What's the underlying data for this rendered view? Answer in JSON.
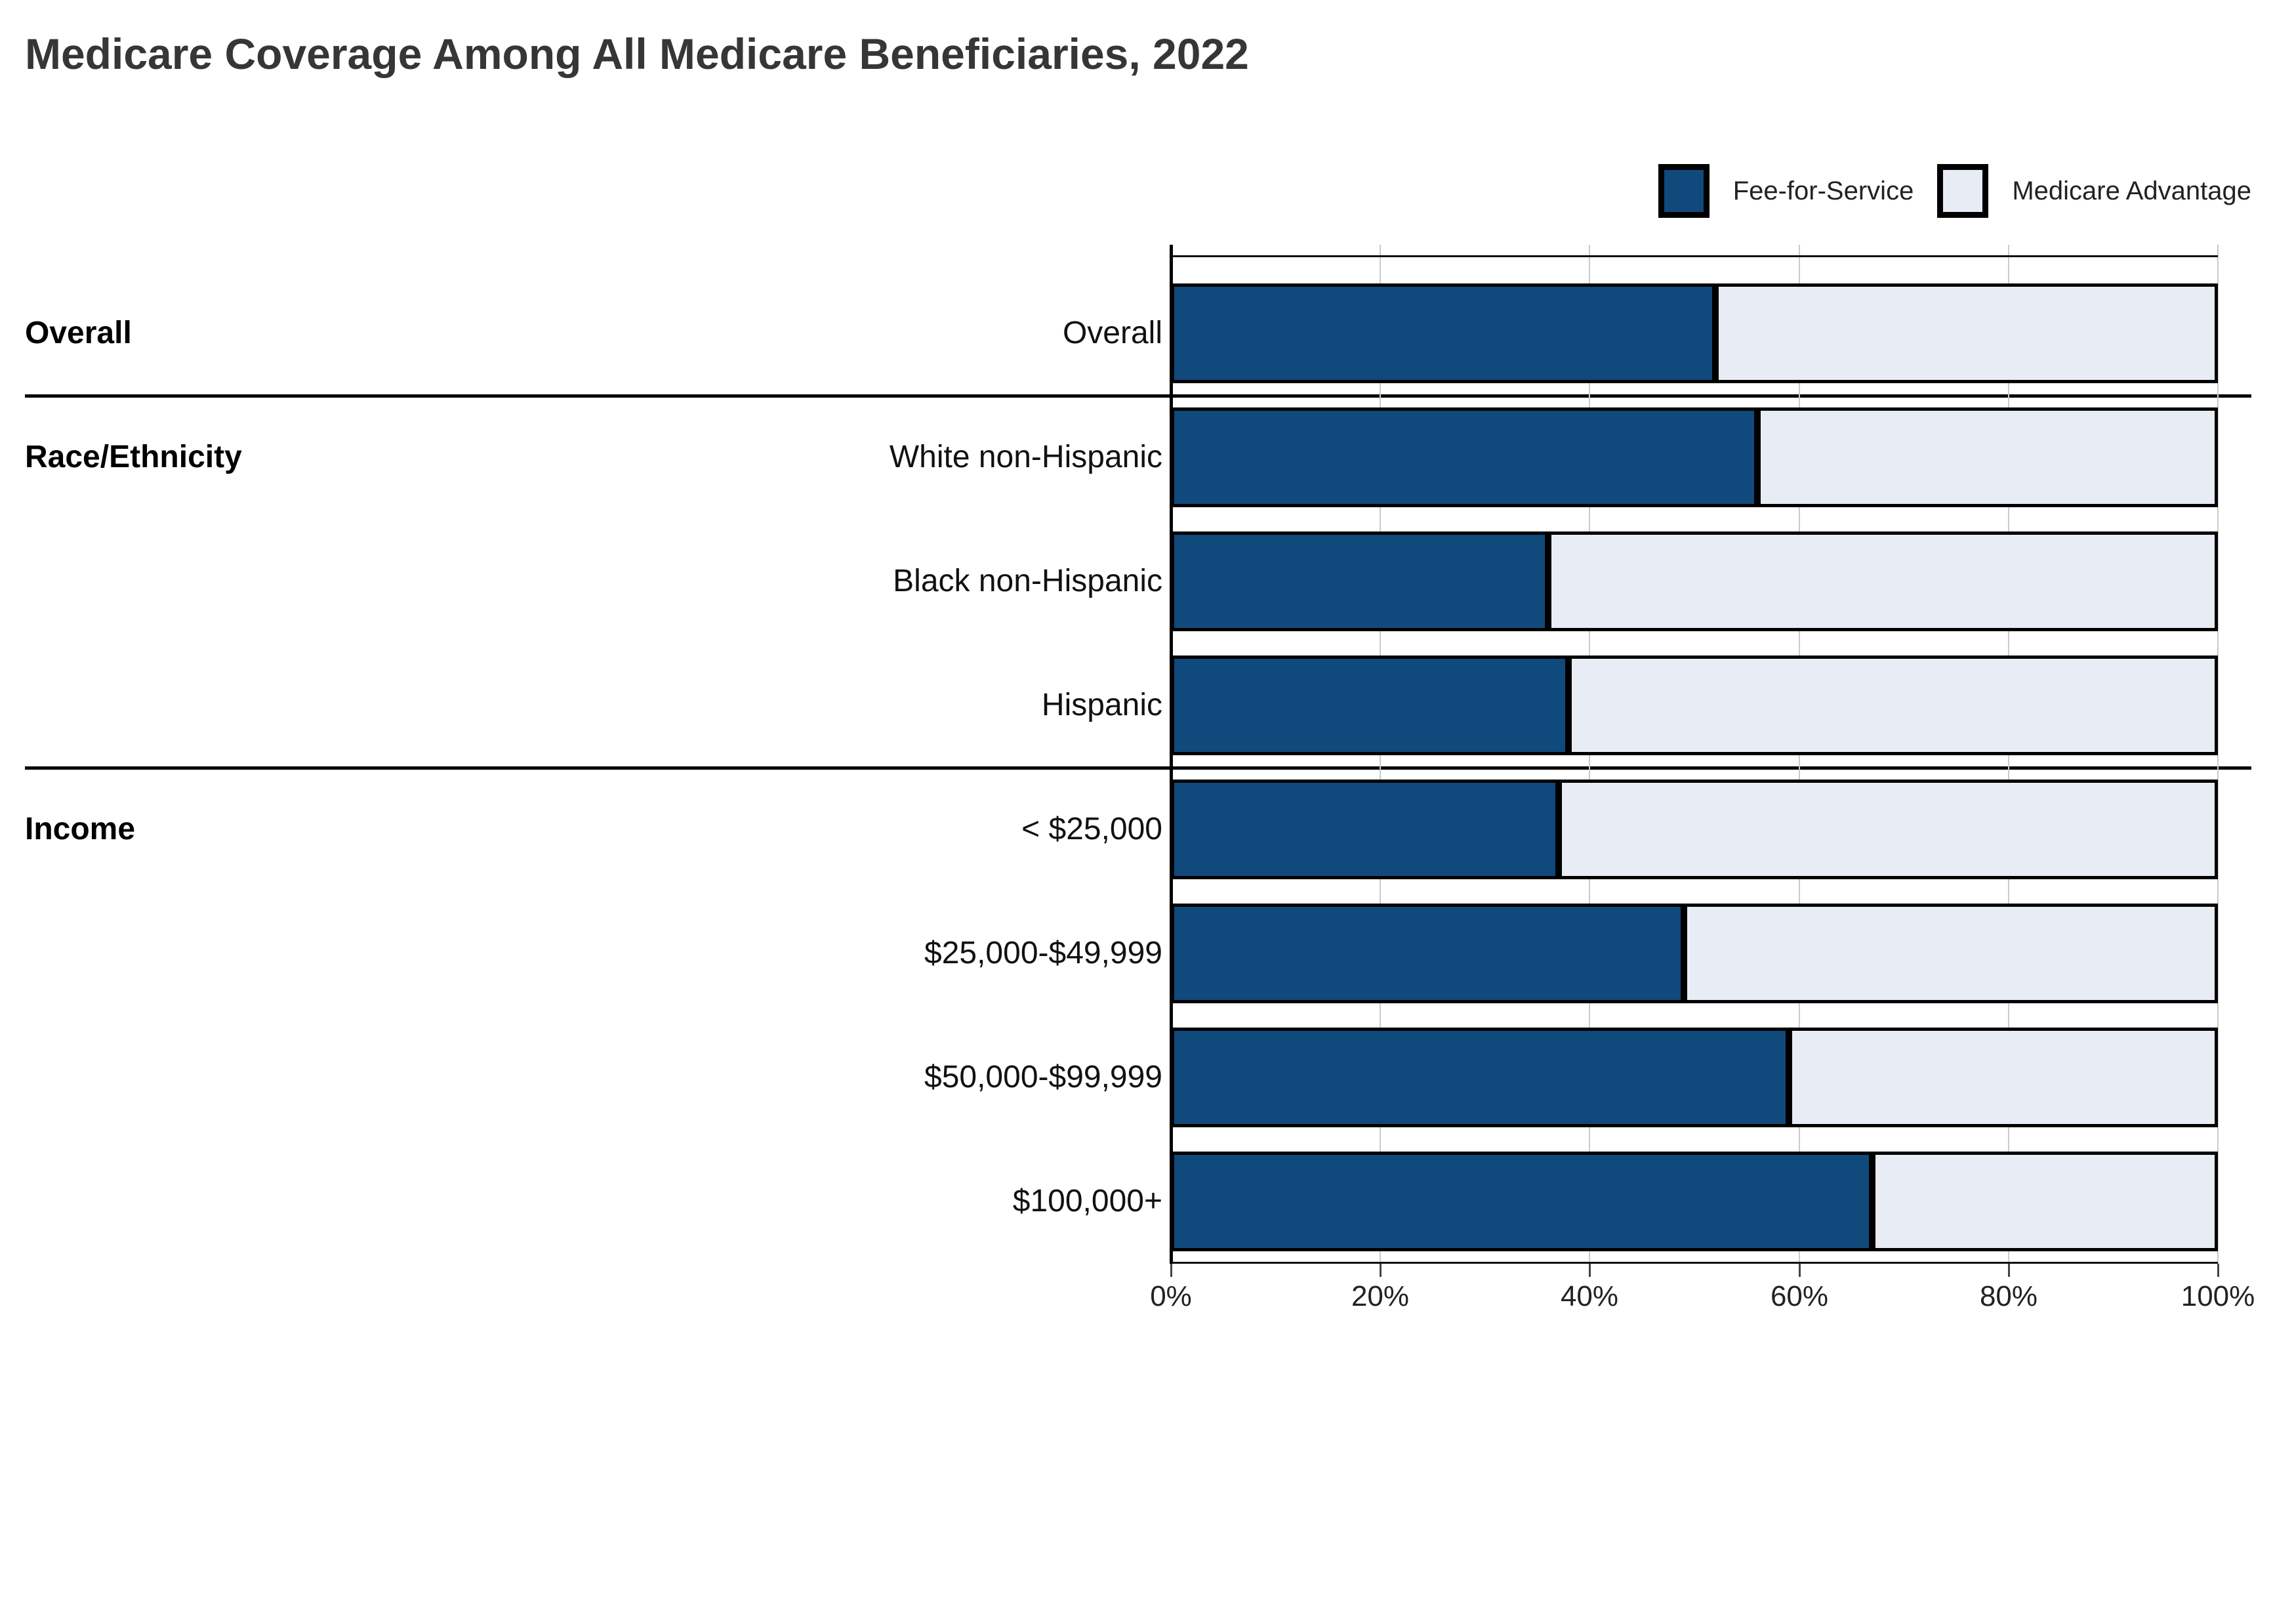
{
  "title": "Medicare Coverage Among All Medicare Beneficiaries, 2022",
  "chart_data": {
    "type": "bar",
    "stacked": true,
    "orientation": "horizontal",
    "title": "Medicare Coverage Among All Medicare Beneficiaries, 2022",
    "categories": [
      "Overall",
      "White non-Hispanic",
      "Black non-Hispanic",
      "Hispanic",
      "< $25,000",
      "$25,000-$49,999",
      "$50,000-$99,999",
      "$100,000+"
    ],
    "groups": [
      {
        "label": "Overall",
        "rows": [
          0
        ]
      },
      {
        "label": "Race/Ethnicity",
        "rows": [
          1,
          2,
          3
        ]
      },
      {
        "label": "Income",
        "rows": [
          4,
          5,
          6,
          7
        ]
      }
    ],
    "series": [
      {
        "name": "Fee-for-Service",
        "color": "#10497C",
        "values": [
          52,
          56,
          36,
          38,
          37,
          49,
          59,
          67
        ]
      },
      {
        "name": "Medicare Advantage",
        "color": "#E8ECF4",
        "values": [
          48,
          44,
          64,
          62,
          63,
          51,
          41,
          33
        ]
      }
    ],
    "unit": "%",
    "xlabel": "",
    "ylabel": "",
    "xlim": [
      0,
      100
    ],
    "x_ticks": [
      "0%",
      "20%",
      "40%",
      "60%",
      "80%",
      "100%"
    ],
    "x_tick_values": [
      0,
      20,
      40,
      60,
      80,
      100
    ],
    "grid": "vertical",
    "legend_position": "top-right",
    "bar_border_color": "#000000",
    "gridline_color": "#cbcbcb",
    "background": "#ffffff"
  }
}
